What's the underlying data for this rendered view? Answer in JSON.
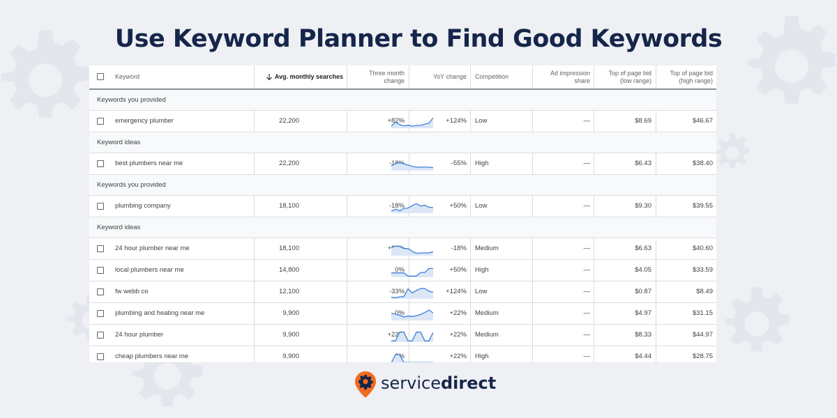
{
  "title": "Use Keyword Planner to Find Good Keywords",
  "colors": {
    "title": "#16264a",
    "spark_line": "#3d7fd6",
    "spark_fill": "#dbe7f7",
    "logo_orange": "#f26b21"
  },
  "table": {
    "headers": {
      "keyword": "Keyword",
      "avg_sort_icon": "arrow-down-icon",
      "avg": "Avg. monthly searches",
      "three_month": [
        "Three month",
        "change"
      ],
      "yoy": "YoY change",
      "competition": "Competition",
      "ad_share": [
        "Ad impression",
        "share"
      ],
      "bid_low": [
        "Top of page bid",
        "(low range)"
      ],
      "bid_high": [
        "Top of page bid",
        "(high range)"
      ]
    },
    "groups": [
      {
        "label": "Keywords you provided",
        "rows": [
          {
            "keyword": "emergency plumber",
            "avg": "22,200",
            "three_month": "+82%",
            "yoy": "+124%",
            "competition": "Low",
            "ad_share": "—",
            "bid_low": "$8.69",
            "bid_high": "$46.67",
            "trend": [
              60,
              40,
              52,
              58,
              55,
              60,
              56,
              56,
              50,
              44,
              18
            ]
          }
        ]
      },
      {
        "label": "Keyword ideas",
        "rows": [
          {
            "keyword": "best plumbers near me",
            "avg": "22,200",
            "three_month": "-18%",
            "yoy": "-55%",
            "competition": "High",
            "ad_share": "—",
            "bid_low": "$6.43",
            "bid_high": "$38.40",
            "trend": [
              45,
              35,
              30,
              36,
              42,
              48,
              52,
              52,
              52,
              52,
              55
            ]
          }
        ]
      },
      {
        "label": "Keywords you provided",
        "rows": [
          {
            "keyword": "plumbing company",
            "avg": "18,100",
            "three_month": "-18%",
            "yoy": "+50%",
            "competition": "Low",
            "ad_share": "—",
            "bid_low": "$9.30",
            "bid_high": "$39.55",
            "trend": [
              60,
              50,
              58,
              46,
              44,
              32,
              22,
              34,
              30,
              40,
              42
            ]
          }
        ]
      },
      {
        "label": "Keyword ideas",
        "rows": [
          {
            "keyword": "24 hour plumber near me",
            "avg": "18,100",
            "three_month": "+22%",
            "yoy": "-18%",
            "competition": "Medium",
            "ad_share": "—",
            "bid_low": "$6.63",
            "bid_high": "$40.60",
            "trend": [
              30,
              22,
              24,
              34,
              34,
              48,
              58,
              56,
              56,
              56,
              50
            ]
          },
          {
            "keyword": "local plumbers near me",
            "avg": "14,800",
            "three_month": "0%",
            "yoy": "+50%",
            "competition": "High",
            "ad_share": "—",
            "bid_low": "$4.05",
            "bid_high": "$33.59",
            "trend": [
              48,
              48,
              48,
              48,
              64,
              64,
              64,
              46,
              46,
              26,
              26
            ]
          },
          {
            "keyword": "fw webb co",
            "avg": "12,100",
            "three_month": "-33%",
            "yoy": "+124%",
            "competition": "Low",
            "ad_share": "—",
            "bid_low": "$0.87",
            "bid_high": "$8.49",
            "trend": [
              62,
              64,
              60,
              58,
              20,
              40,
              28,
              18,
              18,
              32,
              36
            ]
          },
          {
            "keyword": "plumbing and heating near me",
            "avg": "9,900",
            "three_month": "0%",
            "yoy": "+22%",
            "competition": "Medium",
            "ad_share": "—",
            "bid_low": "$4.97",
            "bid_high": "$31.15",
            "trend": [
              34,
              38,
              44,
              52,
              48,
              50,
              46,
              40,
              30,
              18,
              32
            ]
          },
          {
            "keyword": "24 hour plumber",
            "avg": "9,900",
            "three_month": "+22%",
            "yoy": "+22%",
            "competition": "Medium",
            "ad_share": "—",
            "bid_low": "$8.33",
            "bid_high": "$44.97",
            "trend": [
              64,
              64,
              20,
              20,
              64,
              64,
              20,
              20,
              64,
              64,
              22
            ]
          },
          {
            "keyword": "cheap plumbers near me",
            "avg": "9,900",
            "three_month": "0%",
            "yoy": "+22%",
            "competition": "High",
            "ad_share": "—",
            "bid_low": "$4.44",
            "bid_high": "$28.75",
            "trend": [
              66,
              24,
              26,
              64,
              64,
              64,
              64,
              64,
              64,
              64,
              64
            ]
          }
        ]
      }
    ]
  },
  "logo": {
    "icon": "gear-pin-icon",
    "word1": "service",
    "word2": "direct"
  }
}
